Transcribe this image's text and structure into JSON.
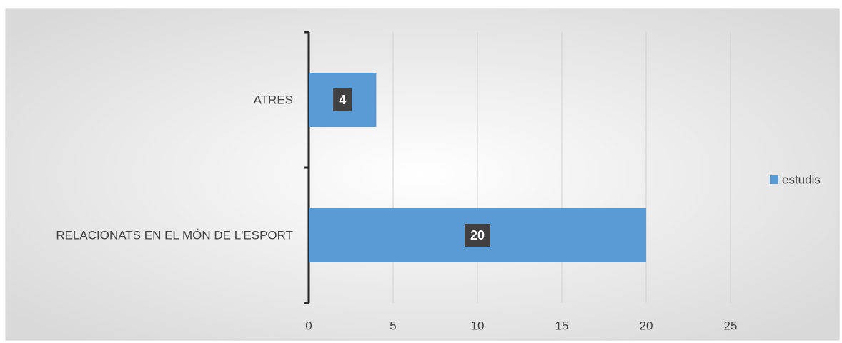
{
  "chart_data": {
    "type": "barh",
    "categories": [
      "ATRES",
      "RELACIONATS EN EL MÓN DE L'ESPORT"
    ],
    "series": [
      {
        "name": "estudis",
        "color": "#5b9bd5",
        "values": [
          4,
          20
        ]
      }
    ],
    "xlim": [
      0,
      30
    ],
    "xticks": [
      0,
      5,
      10,
      15,
      20,
      25
    ],
    "grid": true,
    "legend": "right"
  }
}
